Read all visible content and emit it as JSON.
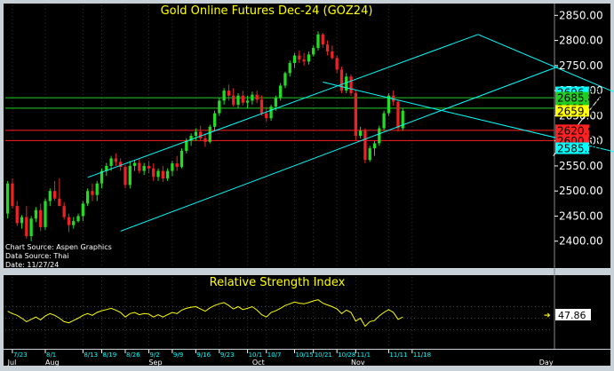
{
  "chart_data": [
    {
      "type": "candlestick",
      "title": "Gold Online Futures Dec-24 (GOZ24)",
      "source_lines": [
        "Chart Source: Aspen Graphics",
        "Data Source: Thai",
        "Date: 11/27/24"
      ],
      "ylim": [
        2350,
        2870
      ],
      "yticks": [
        2400,
        2450,
        2500,
        2550,
        2600,
        2650,
        2700,
        2750,
        2800,
        2850
      ],
      "ytick_labels": [
        "2400.00",
        "2450.00",
        "2500.00",
        "2550.00",
        "2600.00",
        "2650.00",
        "2700.00",
        "2750.00",
        "2800.00",
        "2850.00"
      ],
      "price_labels": [
        {
          "label": "2696.56",
          "value": 2696.56,
          "color": "#00ffff"
        },
        {
          "label": "2685.83",
          "value": 2685.83,
          "color": "#22cc22"
        },
        {
          "label": "2665.00",
          "value": 2665.0,
          "color": "#22cc22"
        },
        {
          "label": "2659.70",
          "value": 2659.7,
          "color": "#ffff00"
        },
        {
          "label": "2620.92",
          "value": 2620.92,
          "color": "#ff2020"
        },
        {
          "label": "2600.58",
          "value": 2600.58,
          "color": "#ff2020"
        },
        {
          "label": "2585.20",
          "value": 2585.2,
          "color": "#00ffff"
        }
      ],
      "horizontal_lines": [
        {
          "value": 2685.83,
          "color": "#22cc22"
        },
        {
          "value": 2665.0,
          "color": "#22cc22"
        },
        {
          "value": 2620.92,
          "color": "#ff2020"
        },
        {
          "value": 2600.58,
          "color": "#ff2020"
        }
      ],
      "trendlines": [
        {
          "color": "#00ffff",
          "from": {
            "x": 17,
            "y": 2527
          },
          "to": {
            "x": 100,
            "y": 2812
          }
        },
        {
          "color": "#00ffff",
          "from": {
            "x": 24,
            "y": 2420
          },
          "to": {
            "x": 117,
            "y": 2748
          }
        },
        {
          "color": "#00ffff",
          "from": {
            "x": 67,
            "y": 2717
          },
          "to": {
            "x": 130,
            "y": 2576
          }
        },
        {
          "color": "#00ffff",
          "from": {
            "x": 100,
            "y": 2812
          },
          "to": {
            "x": 130,
            "y": 2693
          }
        },
        {
          "color": "#ffffff",
          "from": {
            "x": 116,
            "y": 2570
          },
          "to": {
            "x": 126,
            "y": 2688
          }
        }
      ],
      "x_labels": [
        "7/23",
        "8/1",
        "8/13",
        "8/19",
        "8/26",
        "9/2",
        "9/9",
        "9/16",
        "9/23",
        "10/1",
        "10/7",
        "10/15",
        "10/21",
        "10/28",
        "11/1",
        "11/11",
        "11/18"
      ],
      "x_label_index": [
        1,
        8,
        16,
        20,
        25,
        30,
        35,
        40,
        45,
        51,
        55,
        61,
        65,
        70,
        74,
        81,
        86
      ],
      "month_labels": [
        "Jul",
        "Aug",
        "Sep",
        "Oct",
        "Nov",
        "Day"
      ],
      "month_label_index": [
        0,
        8,
        30,
        52,
        73,
        113
      ],
      "candles": [
        {
          "o": 2455,
          "h": 2520,
          "l": 2445,
          "c": 2515
        },
        {
          "o": 2515,
          "h": 2525,
          "l": 2465,
          "c": 2470
        },
        {
          "o": 2470,
          "h": 2480,
          "l": 2430,
          "c": 2436
        },
        {
          "o": 2436,
          "h": 2452,
          "l": 2425,
          "c": 2448
        },
        {
          "o": 2448,
          "h": 2470,
          "l": 2405,
          "c": 2410
        },
        {
          "o": 2410,
          "h": 2450,
          "l": 2400,
          "c": 2445
        },
        {
          "o": 2445,
          "h": 2468,
          "l": 2438,
          "c": 2462
        },
        {
          "o": 2462,
          "h": 2475,
          "l": 2420,
          "c": 2428
        },
        {
          "o": 2428,
          "h": 2485,
          "l": 2422,
          "c": 2480
        },
        {
          "o": 2480,
          "h": 2505,
          "l": 2470,
          "c": 2500
        },
        {
          "o": 2500,
          "h": 2520,
          "l": 2480,
          "c": 2485
        },
        {
          "o": 2485,
          "h": 2525,
          "l": 2470,
          "c": 2470
        },
        {
          "o": 2470,
          "h": 2478,
          "l": 2443,
          "c": 2448
        },
        {
          "o": 2448,
          "h": 2455,
          "l": 2418,
          "c": 2432
        },
        {
          "o": 2432,
          "h": 2448,
          "l": 2425,
          "c": 2440
        },
        {
          "o": 2440,
          "h": 2455,
          "l": 2437,
          "c": 2450
        },
        {
          "o": 2450,
          "h": 2480,
          "l": 2440,
          "c": 2475
        },
        {
          "o": 2475,
          "h": 2505,
          "l": 2470,
          "c": 2500
        },
        {
          "o": 2500,
          "h": 2515,
          "l": 2480,
          "c": 2492
        },
        {
          "o": 2492,
          "h": 2520,
          "l": 2480,
          "c": 2515
        },
        {
          "o": 2515,
          "h": 2545,
          "l": 2505,
          "c": 2540
        },
        {
          "o": 2540,
          "h": 2556,
          "l": 2530,
          "c": 2550
        },
        {
          "o": 2550,
          "h": 2570,
          "l": 2540,
          "c": 2565
        },
        {
          "o": 2565,
          "h": 2575,
          "l": 2550,
          "c": 2558
        },
        {
          "o": 2558,
          "h": 2565,
          "l": 2540,
          "c": 2548
        },
        {
          "o": 2548,
          "h": 2552,
          "l": 2505,
          "c": 2512
        },
        {
          "o": 2512,
          "h": 2560,
          "l": 2505,
          "c": 2550
        },
        {
          "o": 2550,
          "h": 2562,
          "l": 2540,
          "c": 2556
        },
        {
          "o": 2556,
          "h": 2565,
          "l": 2535,
          "c": 2540
        },
        {
          "o": 2540,
          "h": 2556,
          "l": 2532,
          "c": 2550
        },
        {
          "o": 2550,
          "h": 2560,
          "l": 2535,
          "c": 2545
        },
        {
          "o": 2545,
          "h": 2555,
          "l": 2520,
          "c": 2528
        },
        {
          "o": 2528,
          "h": 2545,
          "l": 2520,
          "c": 2540
        },
        {
          "o": 2540,
          "h": 2550,
          "l": 2518,
          "c": 2525
        },
        {
          "o": 2525,
          "h": 2545,
          "l": 2520,
          "c": 2540
        },
        {
          "o": 2540,
          "h": 2560,
          "l": 2530,
          "c": 2555
        },
        {
          "o": 2555,
          "h": 2570,
          "l": 2540,
          "c": 2548
        },
        {
          "o": 2548,
          "h": 2585,
          "l": 2545,
          "c": 2580
        },
        {
          "o": 2580,
          "h": 2605,
          "l": 2575,
          "c": 2600
        },
        {
          "o": 2600,
          "h": 2615,
          "l": 2590,
          "c": 2610
        },
        {
          "o": 2610,
          "h": 2625,
          "l": 2600,
          "c": 2618
        },
        {
          "o": 2618,
          "h": 2630,
          "l": 2600,
          "c": 2605
        },
        {
          "o": 2605,
          "h": 2615,
          "l": 2588,
          "c": 2598
        },
        {
          "o": 2598,
          "h": 2632,
          "l": 2595,
          "c": 2628
        },
        {
          "o": 2628,
          "h": 2660,
          "l": 2620,
          "c": 2655
        },
        {
          "o": 2655,
          "h": 2685,
          "l": 2650,
          "c": 2680
        },
        {
          "o": 2680,
          "h": 2705,
          "l": 2672,
          "c": 2700
        },
        {
          "o": 2700,
          "h": 2712,
          "l": 2680,
          "c": 2690
        },
        {
          "o": 2690,
          "h": 2705,
          "l": 2668,
          "c": 2672
        },
        {
          "o": 2672,
          "h": 2695,
          "l": 2665,
          "c": 2690
        },
        {
          "o": 2690,
          "h": 2700,
          "l": 2670,
          "c": 2676
        },
        {
          "o": 2676,
          "h": 2690,
          "l": 2665,
          "c": 2680
        },
        {
          "o": 2680,
          "h": 2698,
          "l": 2672,
          "c": 2692
        },
        {
          "o": 2692,
          "h": 2700,
          "l": 2675,
          "c": 2682
        },
        {
          "o": 2682,
          "h": 2690,
          "l": 2650,
          "c": 2655
        },
        {
          "o": 2655,
          "h": 2668,
          "l": 2638,
          "c": 2645
        },
        {
          "o": 2645,
          "h": 2672,
          "l": 2640,
          "c": 2668
        },
        {
          "o": 2668,
          "h": 2690,
          "l": 2660,
          "c": 2685
        },
        {
          "o": 2685,
          "h": 2715,
          "l": 2680,
          "c": 2710
        },
        {
          "o": 2710,
          "h": 2738,
          "l": 2705,
          "c": 2735
        },
        {
          "o": 2735,
          "h": 2760,
          "l": 2728,
          "c": 2755
        },
        {
          "o": 2755,
          "h": 2775,
          "l": 2745,
          "c": 2770
        },
        {
          "o": 2770,
          "h": 2780,
          "l": 2755,
          "c": 2762
        },
        {
          "o": 2762,
          "h": 2775,
          "l": 2750,
          "c": 2758
        },
        {
          "o": 2758,
          "h": 2778,
          "l": 2752,
          "c": 2772
        },
        {
          "o": 2772,
          "h": 2790,
          "l": 2768,
          "c": 2785
        },
        {
          "o": 2785,
          "h": 2818,
          "l": 2780,
          "c": 2812
        },
        {
          "o": 2812,
          "h": 2815,
          "l": 2785,
          "c": 2792
        },
        {
          "o": 2792,
          "h": 2800,
          "l": 2770,
          "c": 2778
        },
        {
          "o": 2778,
          "h": 2790,
          "l": 2762,
          "c": 2765
        },
        {
          "o": 2765,
          "h": 2770,
          "l": 2735,
          "c": 2742
        },
        {
          "o": 2742,
          "h": 2748,
          "l": 2695,
          "c": 2700
        },
        {
          "o": 2700,
          "h": 2735,
          "l": 2695,
          "c": 2728
        },
        {
          "o": 2728,
          "h": 2732,
          "l": 2690,
          "c": 2695
        },
        {
          "o": 2695,
          "h": 2700,
          "l": 2600,
          "c": 2610
        },
        {
          "o": 2610,
          "h": 2628,
          "l": 2605,
          "c": 2620
        },
        {
          "o": 2620,
          "h": 2625,
          "l": 2555,
          "c": 2562
        },
        {
          "o": 2562,
          "h": 2590,
          "l": 2558,
          "c": 2585
        },
        {
          "o": 2585,
          "h": 2600,
          "l": 2570,
          "c": 2595
        },
        {
          "o": 2595,
          "h": 2630,
          "l": 2590,
          "c": 2625
        },
        {
          "o": 2625,
          "h": 2660,
          "l": 2620,
          "c": 2655
        },
        {
          "o": 2655,
          "h": 2695,
          "l": 2650,
          "c": 2690
        },
        {
          "o": 2690,
          "h": 2700,
          "l": 2670,
          "c": 2678
        },
        {
          "o": 2678,
          "h": 2682,
          "l": 2618,
          "c": 2625
        },
        {
          "o": 2625,
          "h": 2665,
          "l": 2620,
          "c": 2660
        }
      ]
    },
    {
      "type": "line",
      "title": "Relative Strength Index",
      "ylim": [
        0,
        100
      ],
      "last_value_label": "47.86",
      "last_value": 47.86,
      "color": "#ffff00",
      "values": [
        62,
        58,
        55,
        50,
        44,
        48,
        52,
        47,
        54,
        58,
        55,
        50,
        44,
        42,
        46,
        50,
        55,
        58,
        55,
        60,
        63,
        65,
        67,
        64,
        60,
        52,
        58,
        60,
        56,
        58,
        57,
        52,
        56,
        52,
        56,
        60,
        58,
        64,
        67,
        69,
        70,
        66,
        62,
        68,
        72,
        75,
        77,
        72,
        66,
        70,
        65,
        67,
        70,
        64,
        56,
        52,
        60,
        63,
        67,
        72,
        75,
        78,
        76,
        75,
        77,
        80,
        82,
        76,
        73,
        70,
        66,
        58,
        64,
        60,
        45,
        50,
        36,
        44,
        46,
        54,
        60,
        65,
        60,
        48,
        52
      ]
    }
  ]
}
